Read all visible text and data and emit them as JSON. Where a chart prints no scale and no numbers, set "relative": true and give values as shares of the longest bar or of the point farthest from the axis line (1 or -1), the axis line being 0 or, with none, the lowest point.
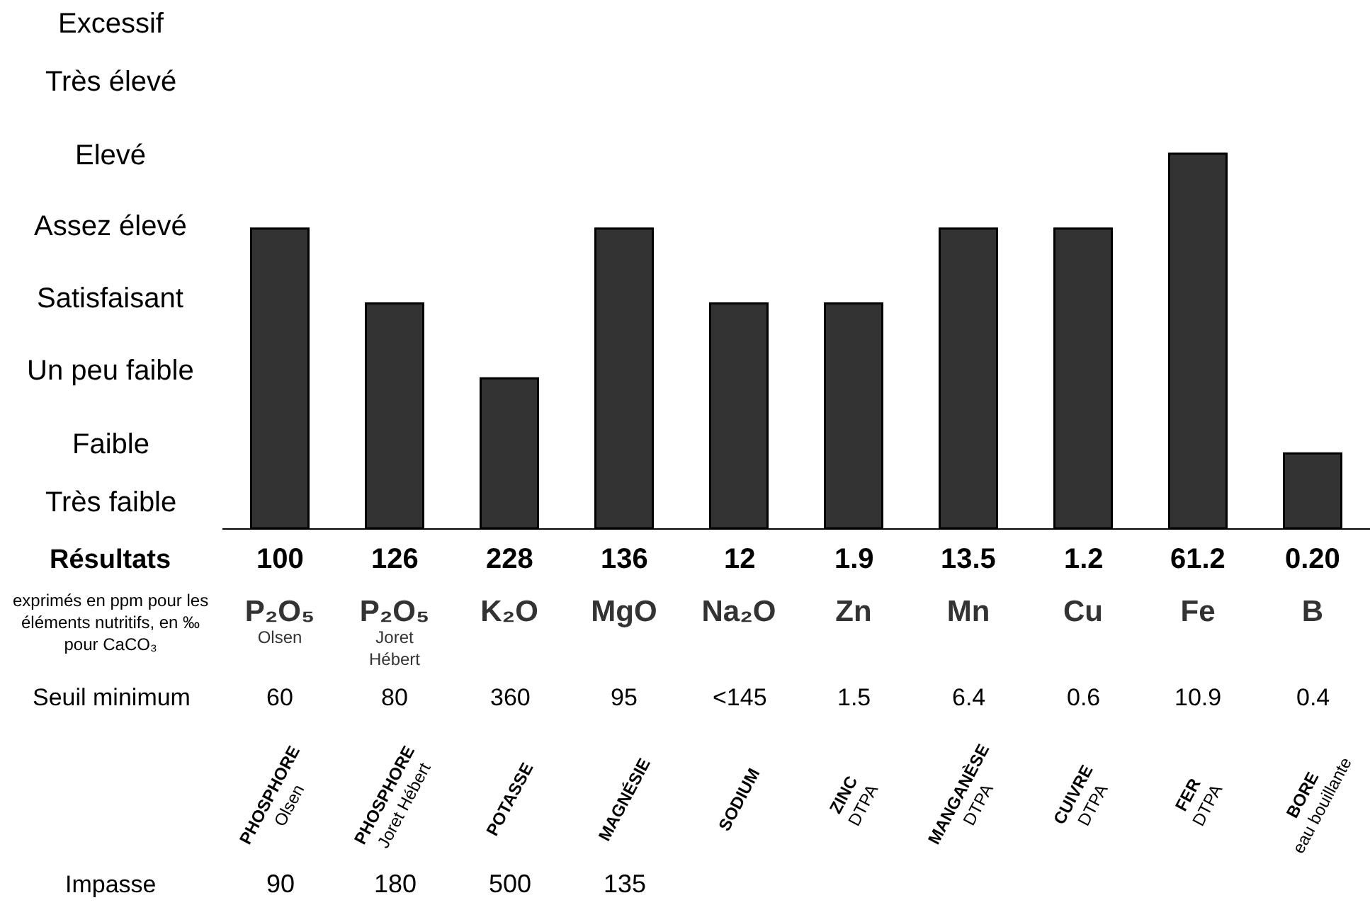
{
  "chart_data": {
    "type": "bar",
    "relative": true,
    "categories": [
      "P₂O₅ Olsen",
      "P₂O₅ Joret Hébert",
      "K₂O",
      "MgO",
      "Na₂O",
      "Zn",
      "Mn",
      "Cu",
      "Fe",
      "B"
    ],
    "values": [
      0.8,
      0.6,
      0.4,
      0.8,
      0.6,
      0.6,
      0.8,
      0.8,
      1,
      0.2
    ],
    "color": "#333333",
    "annotations": [
      "Excessif",
      "Très élevé",
      "Elevé",
      "Assez élevé",
      "Satisfaisant",
      "Un peu faible",
      "Faible",
      "Très faible",
      "Résultats",
      "100",
      "126",
      "228",
      "136",
      "12",
      "1.9",
      "13.5",
      "1.2",
      "61.2",
      "0.20",
      "exprimés en ppm pour les éléments nutritifs, en ‰ pour CaCO₃",
      "Seuil minimum",
      "60",
      "80",
      "360",
      "95",
      "<145",
      "1.5",
      "6.4",
      "0.6",
      "10.9",
      "0.4",
      "PHOSPHORE Olsen",
      "PHOSPHORE Joret Hébert",
      "POTASSE",
      "MAGNÉSIE",
      "SODIUM",
      "ZINC DTPA",
      "MANGANÈSE DTPA",
      "CUIVRE DTPA",
      "FER DTPA",
      "BORE eau bouillante",
      "Impasse",
      "90",
      "180",
      "500",
      "135"
    ]
  }
}
